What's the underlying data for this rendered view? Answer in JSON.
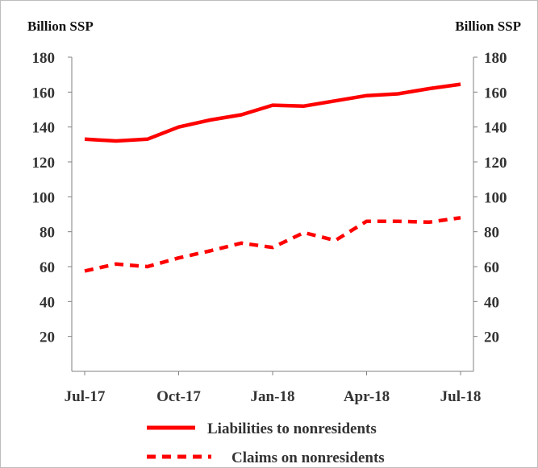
{
  "chart_data": {
    "type": "line",
    "left_axis_label": "Billion SSP",
    "right_axis_label": "Billion SSP",
    "ylim": [
      0,
      180
    ],
    "y_ticks": [
      20,
      40,
      60,
      80,
      100,
      120,
      140,
      160,
      180
    ],
    "x_tick_labels": [
      {
        "label": "Jul-17",
        "index": 0
      },
      {
        "label": "Oct-17",
        "index": 3
      },
      {
        "label": "Jan-18",
        "index": 6
      },
      {
        "label": "Apr-18",
        "index": 9
      },
      {
        "label": "Jul-18",
        "index": 12
      }
    ],
    "x": [
      "Jul-17",
      "Aug-17",
      "Sep-17",
      "Oct-17",
      "Nov-17",
      "Dec-17",
      "Jan-18",
      "Feb-18",
      "Mar-18",
      "Apr-18",
      "May-18",
      "Jun-18",
      "Jul-18"
    ],
    "series": [
      {
        "name": "Liabilities to nonresidents",
        "style": "solid",
        "color": "#ff0000",
        "values": [
          133,
          132,
          133,
          140,
          144,
          147,
          152.5,
          152,
          155,
          158,
          159,
          162,
          164.5
        ]
      },
      {
        "name": "Claims on nonresidents",
        "style": "dashed",
        "color": "#ff0000",
        "values": [
          57.5,
          61.5,
          60,
          65,
          69,
          73.5,
          71,
          79.5,
          75,
          86,
          86,
          85.5,
          88
        ]
      }
    ],
    "grid": false,
    "legend_position": "bottom"
  }
}
